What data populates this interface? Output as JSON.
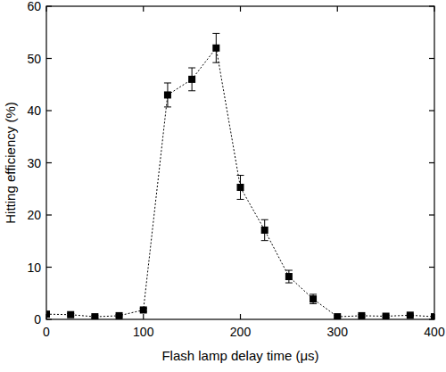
{
  "chart_data": {
    "type": "line",
    "x_label": "Flash lamp delay time (μs)",
    "y_label": "Hitting efficiency (%)",
    "x": [
      0,
      25,
      50,
      75,
      100,
      125,
      150,
      175,
      200,
      225,
      250,
      275,
      300,
      325,
      350,
      375,
      400
    ],
    "series": [
      {
        "color": "#000000",
        "marker": "square",
        "line_style": "dotted",
        "values": [
          1.0,
          0.9,
          0.5,
          0.7,
          1.8,
          43,
          46,
          52,
          25.3,
          17.1,
          8.2,
          3.9,
          0.5,
          0.7,
          0.6,
          0.8,
          0.5
        ],
        "errors": [
          0.2,
          0.2,
          0.2,
          0.2,
          0.3,
          2.3,
          2.2,
          2.8,
          2.3,
          2.0,
          1.2,
          0.9,
          0.2,
          0.2,
          0.2,
          0.2,
          0.2
        ]
      }
    ],
    "xlim": [
      0,
      400
    ],
    "xticks": [
      0,
      100,
      200,
      300,
      400
    ],
    "ylim": [
      0,
      60
    ],
    "yticks": [
      0,
      10,
      20,
      30,
      40,
      50,
      60
    ],
    "grid": false
  }
}
